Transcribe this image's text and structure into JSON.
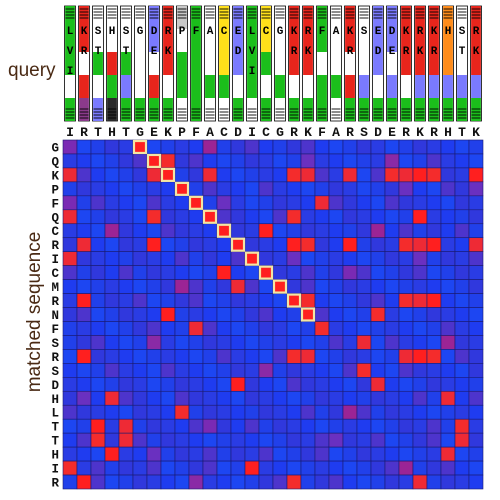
{
  "chart_data": {
    "type": "heatmap",
    "title": "",
    "xlabel": "query",
    "ylabel": "matched sequence",
    "x_categories": [
      "I",
      "R",
      "T",
      "H",
      "T",
      "G",
      "E",
      "K",
      "P",
      "F",
      "A",
      "C",
      "D",
      "I",
      "C",
      "G",
      "R",
      "K",
      "F",
      "A",
      "R",
      "S",
      "D",
      "E",
      "R",
      "K",
      "R",
      "H",
      "T",
      "K"
    ],
    "y_categories": [
      "G",
      "Q",
      "K",
      "P",
      "F",
      "Q",
      "C",
      "R",
      "I",
      "C",
      "M",
      "R",
      "N",
      "F",
      "S",
      "R",
      "S",
      "D",
      "H",
      "L",
      "T",
      "T",
      "H",
      "I",
      "R"
    ],
    "diagonal_match": {
      "query_start": 5,
      "row_start": 0,
      "length": 13,
      "highlight": "#f3e6a4"
    },
    "scale": {
      "low": "#1f3cf0",
      "high": "#ff1f1f"
    },
    "red_cells": [
      [
        0,
        5
      ],
      [
        1,
        6
      ],
      [
        1,
        7
      ],
      [
        2,
        0
      ],
      [
        2,
        6
      ],
      [
        2,
        7
      ],
      [
        2,
        10
      ],
      [
        2,
        16
      ],
      [
        2,
        17
      ],
      [
        2,
        20
      ],
      [
        2,
        23
      ],
      [
        2,
        24
      ],
      [
        2,
        25
      ],
      [
        2,
        26
      ],
      [
        2,
        29
      ],
      [
        3,
        8
      ],
      [
        4,
        9
      ],
      [
        4,
        18
      ],
      [
        5,
        0
      ],
      [
        5,
        6
      ],
      [
        5,
        10
      ],
      [
        5,
        16
      ],
      [
        5,
        25
      ],
      [
        6,
        11
      ],
      [
        6,
        14
      ],
      [
        7,
        1
      ],
      [
        7,
        6
      ],
      [
        7,
        16
      ],
      [
        7,
        17
      ],
      [
        7,
        20
      ],
      [
        7,
        24
      ],
      [
        7,
        25
      ],
      [
        7,
        26
      ],
      [
        7,
        29
      ],
      [
        8,
        0
      ],
      [
        8,
        13
      ],
      [
        9,
        11
      ],
      [
        9,
        14
      ],
      [
        10,
        12
      ],
      [
        11,
        1
      ],
      [
        11,
        16
      ],
      [
        11,
        17
      ],
      [
        11,
        24
      ],
      [
        11,
        25
      ],
      [
        11,
        26
      ],
      [
        12,
        7
      ],
      [
        12,
        22
      ],
      [
        13,
        9
      ],
      [
        13,
        18
      ],
      [
        14,
        21
      ],
      [
        15,
        1
      ],
      [
        15,
        16
      ],
      [
        15,
        17
      ],
      [
        15,
        24
      ],
      [
        15,
        25
      ],
      [
        15,
        26
      ],
      [
        16,
        21
      ],
      [
        17,
        12
      ],
      [
        17,
        22
      ],
      [
        18,
        3
      ],
      [
        18,
        27
      ],
      [
        19,
        8
      ],
      [
        20,
        2
      ],
      [
        20,
        4
      ],
      [
        20,
        28
      ],
      [
        21,
        2
      ],
      [
        21,
        4
      ],
      [
        21,
        28
      ],
      [
        22,
        3
      ],
      [
        22,
        27
      ],
      [
        23,
        0
      ],
      [
        23,
        13
      ],
      [
        24,
        1
      ],
      [
        24,
        16
      ],
      [
        24,
        25
      ]
    ],
    "mid_cells": [
      [
        0,
        0
      ],
      [
        0,
        10
      ],
      [
        1,
        17
      ],
      [
        1,
        23
      ],
      [
        3,
        24
      ],
      [
        3,
        29
      ],
      [
        4,
        0
      ],
      [
        4,
        11
      ],
      [
        6,
        3
      ],
      [
        6,
        22
      ],
      [
        8,
        16
      ],
      [
        8,
        25
      ],
      [
        9,
        20
      ],
      [
        10,
        8
      ],
      [
        12,
        17
      ],
      [
        14,
        6
      ],
      [
        14,
        27
      ],
      [
        16,
        14
      ],
      [
        18,
        1
      ],
      [
        19,
        20
      ],
      [
        20,
        10
      ],
      [
        21,
        19
      ],
      [
        22,
        6
      ],
      [
        23,
        24
      ],
      [
        24,
        9
      ]
    ],
    "query_profile": [
      {
        "residue": "I",
        "label": "L V I",
        "stack": [
          "#1bbe1b",
          "#1bbe1b",
          "#1bbe1b",
          "#ffffff",
          "#1bbe1b"
        ]
      },
      {
        "residue": "R",
        "label": "K R",
        "stack": [
          "#e8251c",
          "#e8251c",
          "#ffffff",
          "#e8251c",
          "#8b3a8b"
        ]
      },
      {
        "residue": "T",
        "label": "S T",
        "stack": [
          "#ffffff",
          "#ffffff",
          "#1bbe1b",
          "#ffffff",
          "#7a7aff"
        ]
      },
      {
        "residue": "H",
        "label": "H",
        "stack": [
          "#ffffff",
          "#ffffff",
          "#e8251c",
          "#1bbe1b",
          "#2a2a2a"
        ]
      },
      {
        "residue": "T",
        "label": "S T",
        "stack": [
          "#ffffff",
          "#ffffff",
          "#1bbe1b",
          "#7a7aff",
          "#1bbe1b"
        ]
      },
      {
        "residue": "G",
        "label": "G",
        "stack": [
          "#ffffff",
          "#ffffff",
          "#ffffff",
          "#ffffff",
          "#1bbe1b"
        ]
      },
      {
        "residue": "E",
        "label": "D E",
        "stack": [
          "#7a7aff",
          "#7a7aff",
          "#ffffff",
          "#e8251c",
          "#1bbe1b"
        ]
      },
      {
        "residue": "K",
        "label": "R K",
        "stack": [
          "#e8251c",
          "#e8251c",
          "#e8251c",
          "#ffffff",
          "#1bbe1b"
        ]
      },
      {
        "residue": "P",
        "label": "P",
        "stack": [
          "#c8c8c8",
          "#ffffff",
          "#1bbe1b",
          "#1bbe1b",
          "#ffffff"
        ]
      },
      {
        "residue": "F",
        "label": "F",
        "stack": [
          "#1bbe1b",
          "#1bbe1b",
          "#1bbe1b",
          "#1bbe1b",
          "#1bbe1b"
        ]
      },
      {
        "residue": "A",
        "label": "A",
        "stack": [
          "#ffffff",
          "#ffffff",
          "#ffffff",
          "#1bbe1b",
          "#ffffff"
        ]
      },
      {
        "residue": "C",
        "label": "C",
        "stack": [
          "#ffe01a",
          "#ffe01a",
          "#ffe01a",
          "#1bbe1b",
          "#ffffff"
        ]
      },
      {
        "residue": "D",
        "label": "E D",
        "stack": [
          "#7a7aff",
          "#7a7aff",
          "#7a7aff",
          "#ffffff",
          "#1bbe1b"
        ]
      },
      {
        "residue": "I",
        "label": "L V I",
        "stack": [
          "#1bbe1b",
          "#1bbe1b",
          "#1bbe1b",
          "#1bbe1b",
          "#ffffff"
        ]
      },
      {
        "residue": "C",
        "label": "C",
        "stack": [
          "#ffe01a",
          "#ffe01a",
          "#1bbe1b",
          "#ffffff",
          "#1bbe1b"
        ]
      },
      {
        "residue": "G",
        "label": "G",
        "stack": [
          "#ffffff",
          "#ffffff",
          "#ffffff",
          "#1bbe1b",
          "#ffffff"
        ]
      },
      {
        "residue": "R",
        "label": "K R",
        "stack": [
          "#e8251c",
          "#e8251c",
          "#e8251c",
          "#ffffff",
          "#1bbe1b"
        ]
      },
      {
        "residue": "K",
        "label": "R K",
        "stack": [
          "#e8251c",
          "#e8251c",
          "#e8251c",
          "#ffffff",
          "#1bbe1b"
        ]
      },
      {
        "residue": "F",
        "label": "F",
        "stack": [
          "#1bbe1b",
          "#1bbe1b",
          "#ffffff",
          "#1bbe1b",
          "#1bbe1b"
        ]
      },
      {
        "residue": "A",
        "label": "A",
        "stack": [
          "#ffffff",
          "#ffffff",
          "#ffffff",
          "#1bbe1b",
          "#ffffff"
        ]
      },
      {
        "residue": "R",
        "label": "K R",
        "stack": [
          "#e8251c",
          "#e8251c",
          "#ffffff",
          "#e8251c",
          "#1bbe1b"
        ]
      },
      {
        "residue": "S",
        "label": "S",
        "stack": [
          "#ffffff",
          "#ffffff",
          "#ffffff",
          "#7a7aff",
          "#1bbe1b"
        ]
      },
      {
        "residue": "D",
        "label": "E D",
        "stack": [
          "#7a7aff",
          "#7a7aff",
          "#7a7aff",
          "#ffffff",
          "#1bbe1b"
        ]
      },
      {
        "residue": "E",
        "label": "D E",
        "stack": [
          "#7a7aff",
          "#7a7aff",
          "#ffffff",
          "#7a7aff",
          "#1bbe1b"
        ]
      },
      {
        "residue": "R",
        "label": "K R",
        "stack": [
          "#e8251c",
          "#e8251c",
          "#e8251c",
          "#ffffff",
          "#1bbe1b"
        ]
      },
      {
        "residue": "K",
        "label": "R K",
        "stack": [
          "#e8251c",
          "#e8251c",
          "#e8251c",
          "#7a7aff",
          "#1bbe1b"
        ]
      },
      {
        "residue": "R",
        "label": "K R",
        "stack": [
          "#e8251c",
          "#e8251c",
          "#e8251c",
          "#7a7aff",
          "#1bbe1b"
        ]
      },
      {
        "residue": "H",
        "label": "H",
        "stack": [
          "#ff8c1a",
          "#ff8c1a",
          "#ff8c1a",
          "#7a7aff",
          "#1bbe1b"
        ]
      },
      {
        "residue": "T",
        "label": "S T",
        "stack": [
          "#ffffff",
          "#ffffff",
          "#ffffff",
          "#7a7aff",
          "#1bbe1b"
        ]
      },
      {
        "residue": "K",
        "label": "R K",
        "stack": [
          "#e8251c",
          "#e8251c",
          "#e8251c",
          "#7a7aff",
          "#1bbe1b"
        ]
      }
    ]
  }
}
